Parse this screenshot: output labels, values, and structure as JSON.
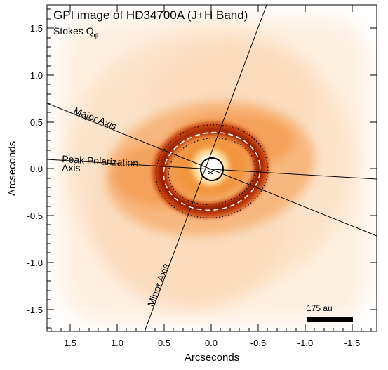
{
  "figure": {
    "title": "GPI image of HD34700A (J+H Band)",
    "subtitle_main": "Stokes Q",
    "subtitle_sub": "φ",
    "xlabel": "Arcseconds",
    "ylabel": "Arcseconds",
    "x_ticks": [
      "1.5",
      "1.0",
      "0.5",
      "0.0",
      "-0.5",
      "-1.0",
      "-1.5"
    ],
    "y_ticks": [
      "1.5",
      "1.0",
      "0.5",
      "0.0",
      "-0.5",
      "-1.0",
      "-1.5"
    ],
    "labels": {
      "major_axis": "Major Axis",
      "minor_axis": "Minor Axis",
      "peak_pol_line1": "Peak Polarization",
      "peak_pol_line2": "Axis"
    },
    "scalebar_label": "175 au",
    "colors": {
      "disk_light": "#fbe4cc",
      "disk_mid": "#f29a47",
      "disk_dark": "#9b1c04",
      "center": "#fffbe8"
    }
  }
}
